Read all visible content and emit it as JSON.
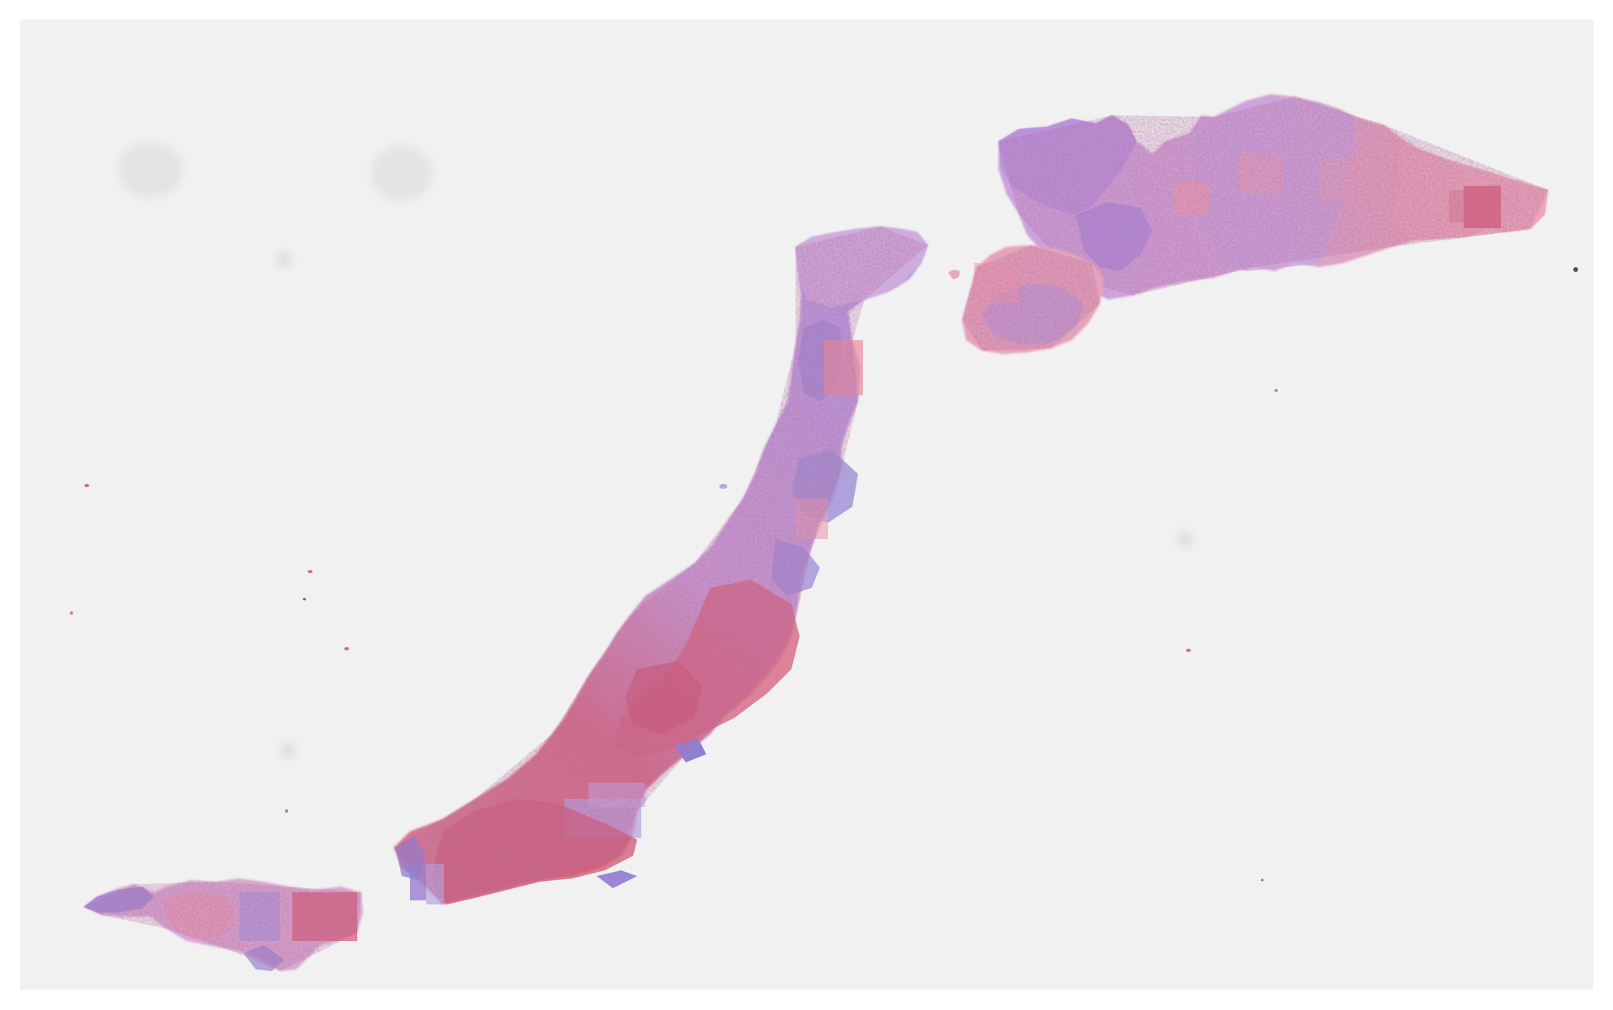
{
  "image": {
    "kind": "histology-whole-slide",
    "stain": "H&E",
    "colors": {
      "page": "#ffffff",
      "slide_background": "#f1f1f1",
      "eosin_pink": "#e08a9c",
      "eosin_deep": "#c8607a",
      "hematoxylin_purple": "#9a86d2",
      "lavender": "#c9a2d6",
      "tile_red": "#d8566e"
    },
    "regions": [
      {
        "name": "upper-right-tissue-fragment"
      },
      {
        "name": "middle-small-fragment"
      },
      {
        "name": "curved-tissue-strip"
      },
      {
        "name": "lower-left-tissue-fragment"
      },
      {
        "name": "scattered-debris-specks"
      },
      {
        "name": "background-dust-spots"
      }
    ]
  }
}
